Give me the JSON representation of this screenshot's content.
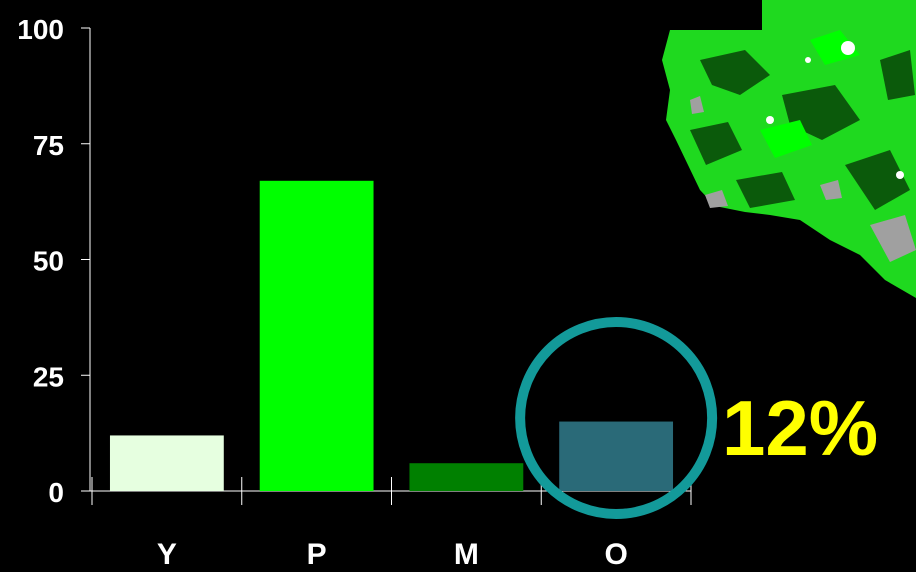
{
  "chart_data": {
    "type": "bar",
    "categories": [
      "Y",
      "P",
      "M",
      "O"
    ],
    "values": [
      12,
      67,
      6,
      15
    ],
    "bar_colors": [
      "#e6ffe0",
      "#00ff00",
      "#008000",
      "#2a6a78"
    ],
    "ylim": [
      0,
      100
    ],
    "yticks": [
      0,
      25,
      50,
      75,
      100
    ],
    "title": "",
    "xlabel": "",
    "ylabel": "",
    "grid": false,
    "highlight": {
      "category": "O",
      "shape": "circle",
      "color": "#139a9a"
    },
    "annotation": {
      "text": "12%",
      "color": "#ffff00"
    }
  },
  "map": {
    "description_colors": [
      "#00ff00",
      "#0b5a0b",
      "#a0a0a0",
      "#ffffff"
    ]
  }
}
